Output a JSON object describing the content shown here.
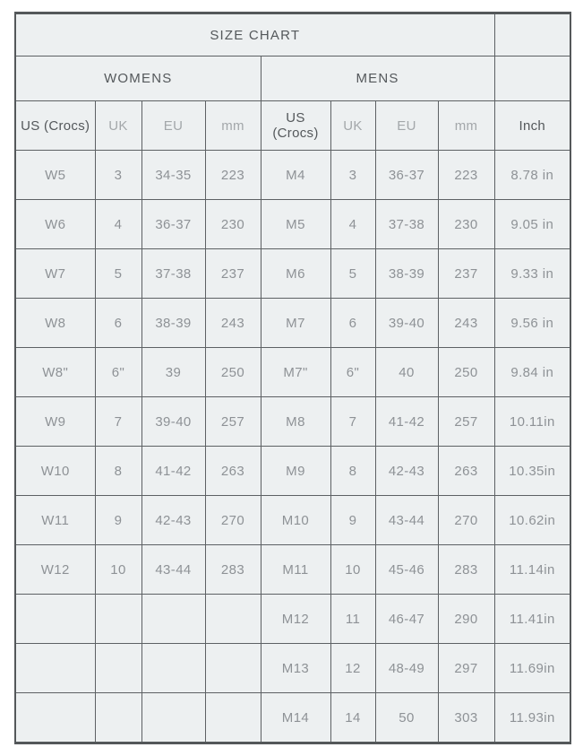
{
  "size_chart": {
    "title": "SIZE CHART",
    "groups": [
      {
        "label": "WOMENS"
      },
      {
        "label": "MENS"
      }
    ],
    "columns": [
      "US (Crocs)",
      "UK",
      "EU",
      "mm",
      "US (Crocs)",
      "UK",
      "EU",
      "mm",
      "Inch"
    ],
    "column_names": [
      "us-womens",
      "uk-womens",
      "eu-womens",
      "mm-womens",
      "us-mens",
      "uk-mens",
      "eu-mens",
      "mm-mens",
      "inch"
    ],
    "rows": [
      [
        "W5",
        "3",
        "34-35",
        "223",
        "M4",
        "3",
        "36-37",
        "223",
        "8.78 in"
      ],
      [
        "W6",
        "4",
        "36-37",
        "230",
        "M5",
        "4",
        "37-38",
        "230",
        "9.05 in"
      ],
      [
        "W7",
        "5",
        "37-38",
        "237",
        "M6",
        "5",
        "38-39",
        "237",
        "9.33 in"
      ],
      [
        "W8",
        "6",
        "38-39",
        "243",
        "M7",
        "6",
        "39-40",
        "243",
        "9.56 in"
      ],
      [
        "W8\"",
        "6\"",
        "39",
        "250",
        "M7\"",
        "6\"",
        "40",
        "250",
        "9.84 in"
      ],
      [
        "W9",
        "7",
        "39-40",
        "257",
        "M8",
        "7",
        "41-42",
        "257",
        "10.11in"
      ],
      [
        "W10",
        "8",
        "41-42",
        "263",
        "M9",
        "8",
        "42-43",
        "263",
        "10.35in"
      ],
      [
        "W11",
        "9",
        "42-43",
        "270",
        "M10",
        "9",
        "43-44",
        "270",
        "10.62in"
      ],
      [
        "W12",
        "10",
        "43-44",
        "283",
        "M11",
        "10",
        "45-46",
        "283",
        "11.14in"
      ],
      [
        "",
        "",
        "",
        "",
        "M12",
        "11",
        "46-47",
        "290",
        "11.41in"
      ],
      [
        "",
        "",
        "",
        "",
        "M13",
        "12",
        "48-49",
        "297",
        "11.69in"
      ],
      [
        "",
        "",
        "",
        "",
        "M14",
        "14",
        "50",
        "303",
        "11.93in"
      ]
    ],
    "divider_rows": [
      1,
      4,
      8,
      11
    ],
    "colors": {
      "cell_background": "#edf0f1",
      "border_thin": "#5d6164",
      "border_thick": "#54585a",
      "text_dark": "#54585b",
      "text_light": "#a3a7aa",
      "text_data": "#8e9296"
    }
  }
}
